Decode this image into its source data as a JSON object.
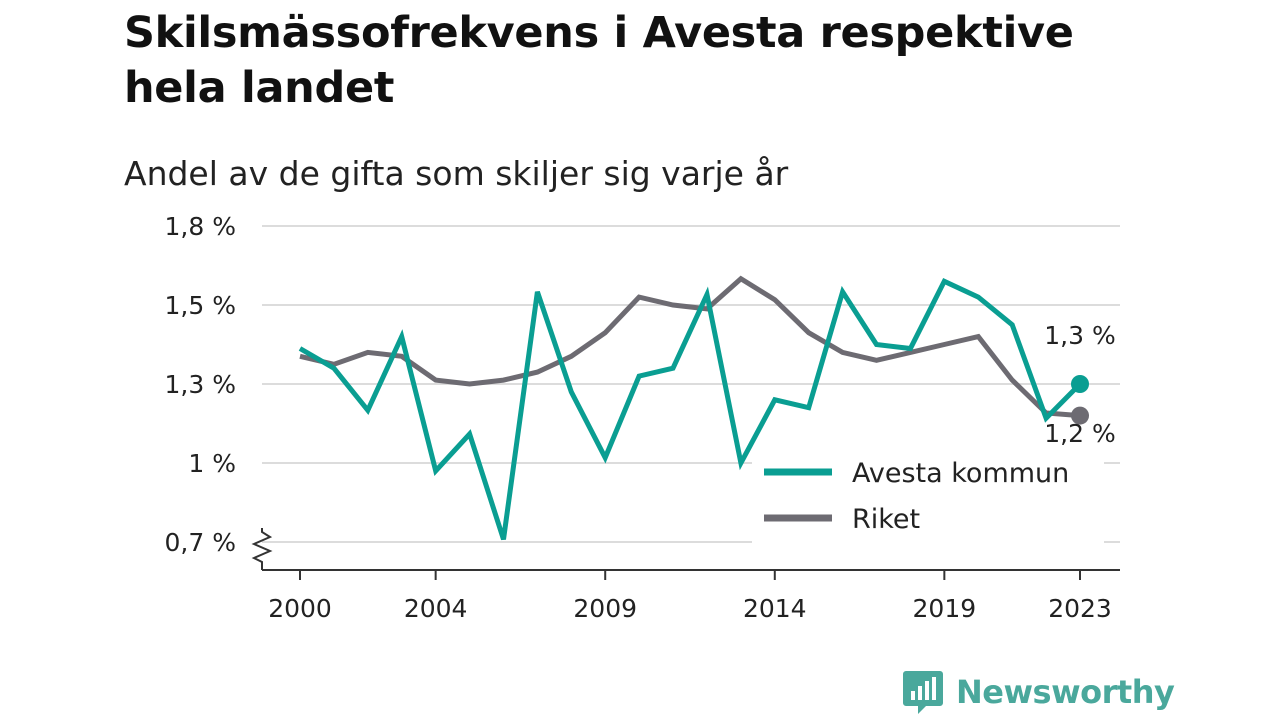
{
  "header": {
    "title": "Skilsmässofrekvens i Avesta respektive hela landet",
    "subtitle": "Andel av de gifta som skiljer sig varje år"
  },
  "brand": {
    "name": "Newsworthy",
    "icon": "newsworthy-logo-icon",
    "color": "#4aa89c"
  },
  "chart_data": {
    "type": "line",
    "x": [
      2000,
      2001,
      2002,
      2003,
      2004,
      2005,
      2006,
      2007,
      2008,
      2009,
      2010,
      2011,
      2012,
      2013,
      2014,
      2015,
      2016,
      2017,
      2018,
      2019,
      2020,
      2021,
      2022,
      2023
    ],
    "x_tick_values": [
      2000,
      2004,
      2009,
      2014,
      2019,
      2023
    ],
    "x_tick_labels": [
      "2000",
      "2004",
      "2009",
      "2014",
      "2019",
      "2023"
    ],
    "y_tick_values": [
      0.7,
      1.0,
      1.3,
      1.5,
      1.8
    ],
    "y_tick_labels": [
      "0,7 %",
      "1 %",
      "1,3 %",
      "1,5 %",
      "1,8 %"
    ],
    "ylim": [
      0.7,
      1.8
    ],
    "y_axis_break": true,
    "grid": true,
    "legend_position": "bottom-right",
    "series": [
      {
        "name": "Avesta kommun",
        "color": "#0a9e92",
        "values": [
          1.39,
          1.34,
          1.2,
          1.42,
          0.97,
          1.11,
          0.71,
          1.55,
          1.27,
          1.02,
          1.32,
          1.34,
          1.54,
          1.0,
          1.24,
          1.21,
          1.55,
          1.4,
          1.39,
          1.59,
          1.53,
          1.45,
          1.17,
          1.3
        ],
        "end_label": "1,3 %"
      },
      {
        "name": "Riket",
        "color": "#6d6b72",
        "values": [
          1.37,
          1.35,
          1.38,
          1.37,
          1.31,
          1.3,
          1.31,
          1.33,
          1.37,
          1.43,
          1.53,
          1.5,
          1.49,
          1.6,
          1.52,
          1.43,
          1.38,
          1.36,
          1.38,
          1.4,
          1.42,
          1.31,
          1.19,
          1.18
        ],
        "end_label": "1,2 %"
      }
    ]
  }
}
